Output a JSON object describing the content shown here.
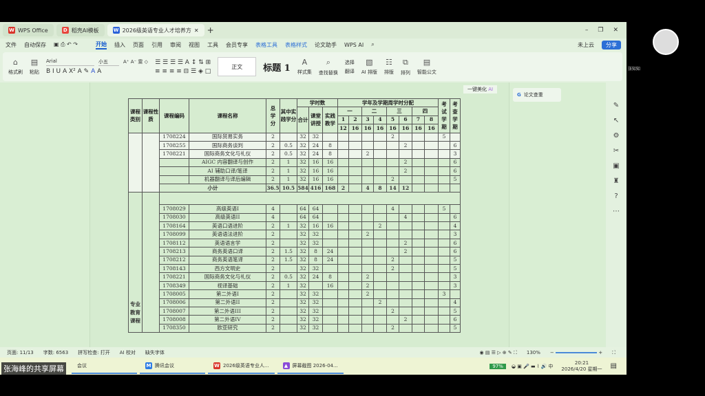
{
  "tabs": [
    {
      "label": "WPS Office",
      "icon": "wps-logo-icon",
      "color": "#d9352a"
    },
    {
      "label": "稻壳AI模板",
      "icon": "docer-icon",
      "color": "#e8453c"
    },
    {
      "label": "2026级英语专业人才培养方",
      "icon": "word-doc-icon",
      "color": "#2b62d9"
    }
  ],
  "window_controls": {
    "minimize": "–",
    "restore": "❐",
    "close": "✕"
  },
  "menu": {
    "file": "文件",
    "autosave": "自动保存",
    "items": [
      "开始",
      "插入",
      "页面",
      "引用",
      "审阅",
      "视图",
      "工具",
      "会员专享"
    ],
    "blue_items": [
      "表格工具",
      "表格样式"
    ],
    "paper": "论文助手",
    "wpsai": "WPS AI",
    "cloud": "未上云",
    "share": "分享"
  },
  "toolbar": {
    "format_painter": "格式刷",
    "paste": "粘贴",
    "font": "Arial",
    "size": "小五",
    "style_normal": "正文",
    "style_h1": "标题 1",
    "style_set": "样式集",
    "find_replace": "查找替换",
    "select": "选择",
    "translate": "翻译",
    "ai_layout": "AI 排版",
    "layout": "排版",
    "arrange": "排列",
    "smart_doc": "智能公文"
  },
  "beautify": "一键美化",
  "plagiarism": "论文查重",
  "table": {
    "headers": {
      "category": "课程类别",
      "nature": "课程性质",
      "code": "课程编码",
      "name": "课程名称",
      "credits": "总学分",
      "practice_credits": "其中实践学分",
      "hours": "学时数",
      "total": "合计",
      "lecture": "课堂讲授",
      "practice": "实践教学",
      "dist": "学年及学期周学时分配",
      "years": [
        "一",
        "二",
        "三",
        "四"
      ],
      "semesters": [
        "1",
        "2",
        "3",
        "4",
        "5",
        "6",
        "7",
        "8"
      ],
      "weeks": [
        "12",
        "16",
        "16",
        "16",
        "16",
        "16",
        "16",
        "16"
      ],
      "exam": "考试学期",
      "check": "考查学期"
    },
    "group2_category": "专业教育课程",
    "rows1": [
      [
        "1708224",
        "国际贸易实务",
        "2",
        "",
        "32",
        "32",
        "",
        "",
        "",
        "",
        "",
        "2",
        "",
        "",
        "",
        "5",
        ""
      ],
      [
        "1708255",
        "国际商务谈判",
        "2",
        "0.5",
        "32",
        "24",
        "8",
        "",
        "",
        "",
        "",
        "",
        "2",
        "",
        "",
        "",
        "6"
      ],
      [
        "1708221",
        "国际商务文化与礼仪",
        "2",
        "0.5",
        "32",
        "24",
        "8",
        "",
        "",
        "2",
        "",
        "",
        "",
        "",
        "",
        "",
        "3"
      ],
      [
        "",
        "AIGC 内容翻译与创作",
        "2",
        "1",
        "32",
        "16",
        "16",
        "",
        "",
        "",
        "",
        "",
        "2",
        "",
        "",
        "",
        "6"
      ],
      [
        "",
        "AI 辅助口译/笔译",
        "2",
        "1",
        "32",
        "16",
        "16",
        "",
        "",
        "",
        "",
        "",
        "2",
        "",
        "",
        "",
        "6"
      ],
      [
        "",
        "机器翻译与译后编辑",
        "2",
        "1",
        "32",
        "16",
        "16",
        "",
        "",
        "",
        "",
        "2",
        "",
        "",
        "",
        "",
        "5"
      ]
    ],
    "subtotal": [
      "小计",
      "36.5",
      "10.5",
      "584",
      "416",
      "168",
      "2",
      "",
      "4",
      "8",
      "14",
      "12",
      "",
      "",
      "",
      ""
    ],
    "rows2": [
      [
        "1708029",
        "高级英语I",
        "4",
        "",
        "64",
        "64",
        "",
        "",
        "",
        "",
        "",
        "4",
        "",
        "",
        "",
        "5",
        ""
      ],
      [
        "1708030",
        "高级英语II",
        "4",
        "",
        "64",
        "64",
        "",
        "",
        "",
        "",
        "",
        "",
        "4",
        "",
        "",
        "",
        "6"
      ],
      [
        "1708164",
        "英语口语进阶",
        "2",
        "1",
        "32",
        "16",
        "16",
        "",
        "",
        "",
        "2",
        "",
        "",
        "",
        "",
        "",
        "4"
      ],
      [
        "1708099",
        "英语语法进阶",
        "2",
        "",
        "32",
        "32",
        "",
        "",
        "",
        "2",
        "",
        "",
        "",
        "",
        "",
        "",
        "3"
      ],
      [
        "1708112",
        "英语语言学",
        "2",
        "",
        "32",
        "32",
        "",
        "",
        "",
        "",
        "",
        "",
        "2",
        "",
        "",
        "",
        "6"
      ],
      [
        "1708213",
        "商务英语口译",
        "2",
        "1.5",
        "32",
        "8",
        "24",
        "",
        "",
        "",
        "",
        "",
        "2",
        "",
        "",
        "",
        "6"
      ],
      [
        "1708212",
        "商务英语笔译",
        "2",
        "1.5",
        "32",
        "8",
        "24",
        "",
        "",
        "",
        "",
        "2",
        "",
        "",
        "",
        "",
        "5"
      ],
      [
        "1708143",
        "西方文明史",
        "2",
        "",
        "32",
        "32",
        "",
        "",
        "",
        "",
        "",
        "2",
        "",
        "",
        "",
        "",
        "5"
      ],
      [
        "1708221",
        "国际商务文化与礼仪",
        "2",
        "0.5",
        "32",
        "24",
        "8",
        "",
        "",
        "2",
        "",
        "",
        "",
        "",
        "",
        "",
        "3"
      ],
      [
        "1708349",
        "视译基础",
        "2",
        "1",
        "32",
        "",
        "16",
        "",
        "",
        "2",
        "",
        "",
        "",
        "",
        "",
        "",
        "3"
      ],
      [
        "1708005",
        "第二外语I",
        "2",
        "",
        "32",
        "32",
        "",
        "",
        "",
        "2",
        "",
        "",
        "",
        "",
        "",
        "3",
        ""
      ],
      [
        "1708006",
        "第二外语II",
        "2",
        "",
        "32",
        "32",
        "",
        "",
        "",
        "",
        "2",
        "",
        "",
        "",
        "",
        "",
        "4"
      ],
      [
        "1708007",
        "第二外语III",
        "2",
        "",
        "32",
        "32",
        "",
        "",
        "",
        "",
        "",
        "2",
        "",
        "",
        "",
        "",
        "5"
      ],
      [
        "1708008",
        "第二外语IV",
        "2",
        "",
        "32",
        "32",
        "",
        "",
        "",
        "",
        "",
        "",
        "2",
        "",
        "",
        "",
        "6"
      ],
      [
        "1708350",
        "欧亚研究",
        "2",
        "",
        "32",
        "32",
        "",
        "",
        "",
        "",
        "",
        "2",
        "",
        "",
        "",
        "",
        "5"
      ]
    ]
  },
  "status": {
    "page": "页面: 11/13",
    "words": "字数: 6563",
    "spell": "拼写检查: 打开",
    "ai_check": "AI 校对",
    "missing_font": "缺失字体",
    "zoom": "130%"
  },
  "taskbar": {
    "items": [
      "会议",
      "腾讯会议",
      "2026级英语专业人...",
      "屏幕截图 2026-04..."
    ],
    "battery": "97%",
    "time": "20:21",
    "date": "2026/4/20 星期一"
  },
  "share_label": "张海峰的共享屏幕",
  "participant": "张知知"
}
